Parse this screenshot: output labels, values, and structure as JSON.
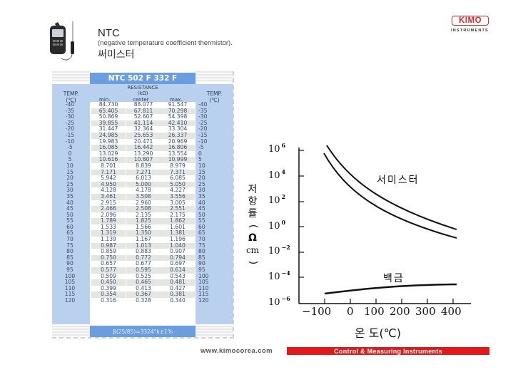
{
  "header": {
    "title": "NTC",
    "subtitle": "(negative temperature coefficient thermistor).",
    "title_korean": "써미스터"
  },
  "logo": {
    "brand": "KIMO",
    "tagline": "INSTRUMENTS",
    "color": "#d62a2a"
  },
  "table": {
    "title": "NTC 502 F 332 F",
    "temp_header_line1": "TEMP.",
    "temp_header_line2": "(℃)",
    "resistance_header_line1": "RESISTANCE",
    "resistance_header_line2": "(kΩ)",
    "col_min": "min.",
    "col_center": "center",
    "col_max": "max.",
    "footer": "β(25/85)=3324°k±1%",
    "rows": [
      {
        "temp": "-40",
        "min": "84.730",
        "center": "88.077",
        "max": "91.547"
      },
      {
        "temp": "-35",
        "min": "65.405",
        "center": "67.811",
        "max": "70.298"
      },
      {
        "temp": "-30",
        "min": "50.869",
        "center": "52.607",
        "max": "54.398"
      },
      {
        "temp": "-25",
        "min": "39.855",
        "center": "41.114",
        "max": "42.410"
      },
      {
        "temp": "-20",
        "min": "31.447",
        "center": "32.364",
        "max": "33.304"
      },
      {
        "temp": "-15",
        "min": "24.985",
        "center": "25.653",
        "max": "26.337"
      },
      {
        "temp": "-10",
        "min": "19.983",
        "center": "20.471",
        "max": "20.969"
      },
      {
        "temp": "-5",
        "min": "16.085",
        "center": "16.442",
        "max": "16.806"
      },
      {
        "temp": "0",
        "min": "13.029",
        "center": "13.290",
        "max": "13.554"
      },
      {
        "temp": "5",
        "min": "10.616",
        "center": "10.807",
        "max": "10.999"
      },
      {
        "temp": "10",
        "min": "8.701",
        "center": "8.839",
        "max": "8.979"
      },
      {
        "temp": "15",
        "min": "7.171",
        "center": "7.271",
        "max": "7.371"
      },
      {
        "temp": "20",
        "min": "5.942",
        "center": "6.013",
        "max": "6.085"
      },
      {
        "temp": "25",
        "min": "4.950",
        "center": "5.000",
        "max": "5.050"
      },
      {
        "temp": "30",
        "min": "4.128",
        "center": "4.178",
        "max": "4.227"
      },
      {
        "temp": "35",
        "min": "3.461",
        "center": "3.508",
        "max": "3.556"
      },
      {
        "temp": "40",
        "min": "2.915",
        "center": "2.960",
        "max": "3.005"
      },
      {
        "temp": "45",
        "min": "2.466",
        "center": "2.508",
        "max": "2.551"
      },
      {
        "temp": "50",
        "min": "2.096",
        "center": "2.135",
        "max": "2.175"
      },
      {
        "temp": "55",
        "min": "1.789",
        "center": "1.825",
        "max": "1.862"
      },
      {
        "temp": "60",
        "min": "1.533",
        "center": "1.566",
        "max": "1.601"
      },
      {
        "temp": "65",
        "min": "1.319",
        "center": "1.350",
        "max": "1.381"
      },
      {
        "temp": "70",
        "min": "1.139",
        "center": "1.167",
        "max": "1.196"
      },
      {
        "temp": "75",
        "min": "0.987",
        "center": "1.013",
        "max": "1.040"
      },
      {
        "temp": "80",
        "min": "0.859",
        "center": "0.883",
        "max": "0.907"
      },
      {
        "temp": "85",
        "min": "0.750",
        "center": "0.772",
        "max": "0.794"
      },
      {
        "temp": "90",
        "min": "0.657",
        "center": "0.677",
        "max": "0.697"
      },
      {
        "temp": "95",
        "min": "0.577",
        "center": "0.595",
        "max": "0.614"
      },
      {
        "temp": "100",
        "min": "0.509",
        "center": "0.525",
        "max": "0.543"
      },
      {
        "temp": "105",
        "min": "0.450",
        "center": "0.465",
        "max": "0.481"
      },
      {
        "temp": "110",
        "min": "0.399",
        "center": "0.413",
        "max": "0.427"
      },
      {
        "temp": "115",
        "min": "0.354",
        "center": "0.367",
        "max": "0.381"
      },
      {
        "temp": "120",
        "min": "0.316",
        "center": "0.328",
        "max": "0.340"
      }
    ]
  },
  "chart": {
    "ylabel_chars": [
      "저",
      "항",
      "률",
      "(",
      "Ω",
      "cm",
      ")"
    ],
    "xlabel": "온 도(℃)",
    "y_ticks": [
      {
        "base": "10",
        "exp": "6"
      },
      {
        "base": "10",
        "exp": "4"
      },
      {
        "base": "10",
        "exp": "2"
      },
      {
        "base": "10",
        "exp": "0"
      },
      {
        "base": "10",
        "exp": "−2"
      },
      {
        "base": "10",
        "exp": "−4"
      },
      {
        "base": "10",
        "exp": "−6"
      }
    ],
    "x_ticks": [
      "−100",
      "0",
      "100",
      "200",
      "300",
      "400"
    ],
    "series_thermistor_label": "서미스터",
    "series_platinum_label": "백금"
  },
  "chart_data": {
    "type": "line",
    "title": "",
    "xlabel": "온 도(℃)",
    "ylabel": "저항률 (Ω cm)",
    "yscale": "log",
    "xlim": [
      -100,
      420
    ],
    "ylim": [
      1e-06,
      1000000.0
    ],
    "x_ticks": [
      -100,
      0,
      100,
      200,
      300,
      400
    ],
    "y_ticks": [
      1e-06,
      0.0001,
      0.01,
      1,
      100.0,
      10000.0,
      1000000.0
    ],
    "grid": false,
    "x": [
      -90,
      -50,
      0,
      50,
      100,
      150,
      200,
      250,
      300,
      350,
      400
    ],
    "series": [
      {
        "name": "서미스터 (upper)",
        "values": [
          800000,
          80000,
          8000,
          1200,
          220,
          50,
          12,
          4,
          1.5,
          0.6,
          0.25
        ]
      },
      {
        "name": "서미스터 (lower)",
        "values": [
          100000,
          12000,
          1500,
          250,
          50,
          12,
          3.5,
          1.2,
          0.45,
          0.18,
          0.08
        ]
      },
      {
        "name": "백금",
        "values": [
          3e-06,
          3.6e-06,
          4.3e-06,
          5e-06,
          6e-06,
          7e-06,
          7.8e-06,
          8.3e-06,
          8.6e-06,
          8.8e-06,
          9e-06
        ]
      }
    ],
    "annotations": [
      "서미스터",
      "백금"
    ]
  },
  "footer": {
    "url": "www.kimocorea.com",
    "banner": "Control & Measuring Instruments",
    "banner_color": "#e0191b"
  }
}
